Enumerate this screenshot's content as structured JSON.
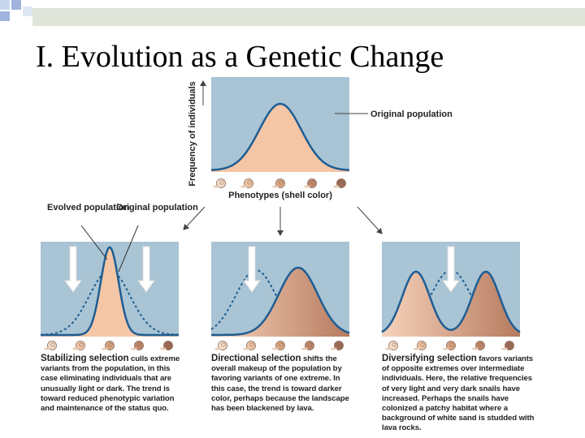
{
  "title": "I. Evolution as a Genetic Change",
  "top_panel": {
    "y_axis_label": "Frequency of individuals",
    "curve_label": "Original population",
    "x_axis_label": "Phenotypes (shell color)"
  },
  "curve_labels": {
    "evolved": "Evolved population",
    "original": "Original population"
  },
  "panels": [
    {
      "heading": "Stabilizing selection",
      "text": "culls extreme variants from the population, in this case eliminating individuals that are unusually light or dark. The trend is toward reduced phenotypic variation and maintenance of the status quo."
    },
    {
      "heading": "Directional selection",
      "text": "shifts the overall makeup of the population by favoring variants of one extreme. In this case, the trend is toward darker color, perhaps because the landscape has been blackened by lava."
    },
    {
      "heading": "Diversifying selection",
      "text": "favors variants of opposite extremes over intermediate individuals. Here, the relative frequencies of very light and very dark snails have increased. Perhaps the snails have colonized a patchy habitat where a background of white sand is studded with lava rocks."
    }
  ]
}
